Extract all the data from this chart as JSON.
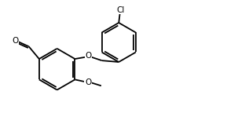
{
  "bg_color": "#ffffff",
  "line_color": "#000000",
  "lw": 1.3,
  "fs": 7.5,
  "figsize": [
    2.98,
    1.58
  ],
  "dpi": 100,
  "xlim": [
    0.0,
    10.5
  ],
  "ylim": [
    0.5,
    6.5
  ]
}
